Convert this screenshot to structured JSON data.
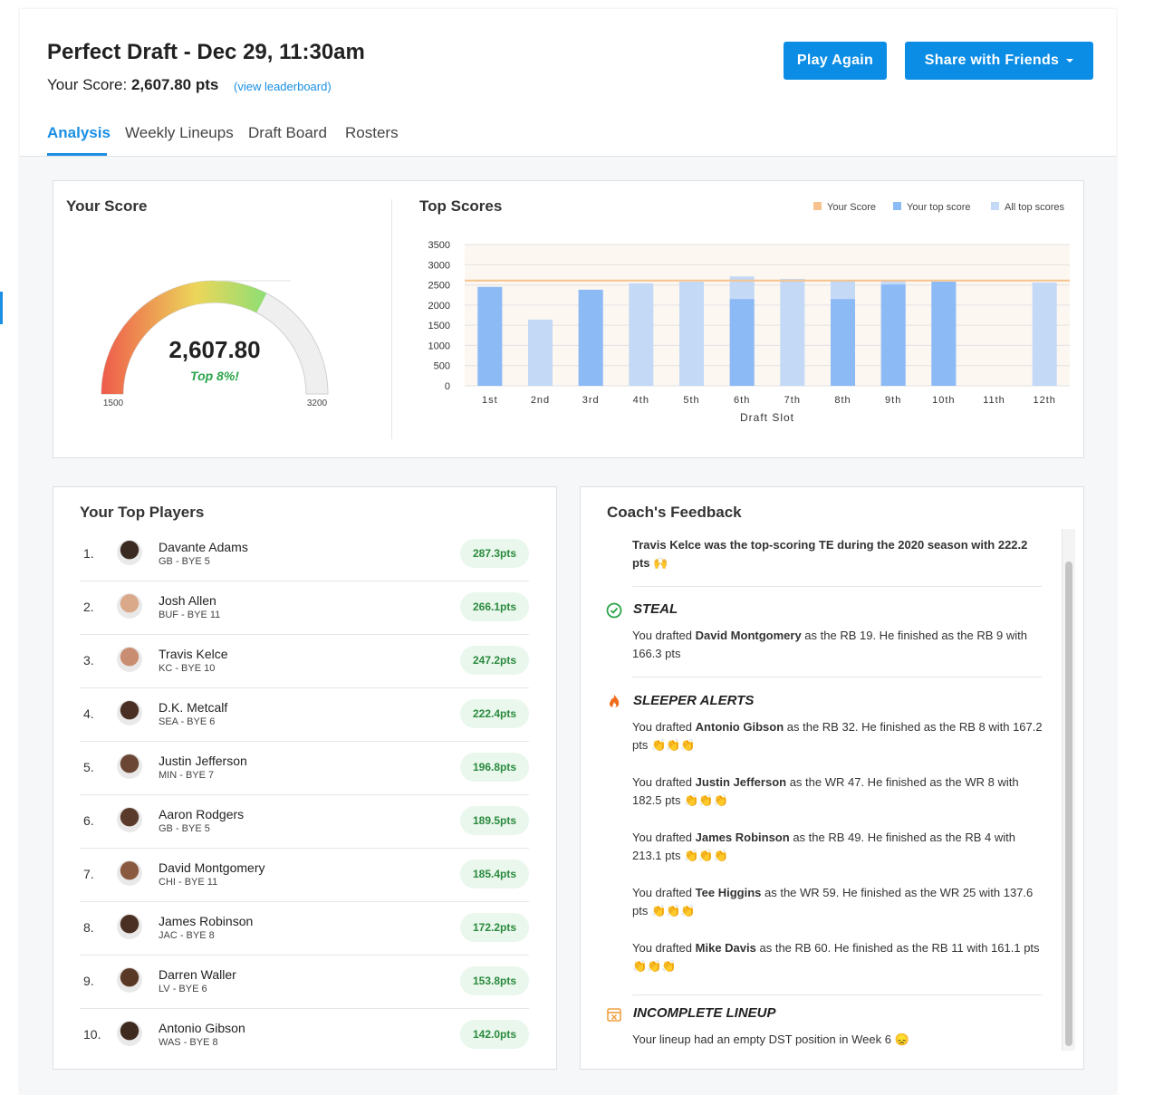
{
  "header": {
    "title": "Perfect Draft - Dec 29, 11:30am",
    "score_label": "Your Score:",
    "score": "2,607.80 pts",
    "leaderboard_link": "(view leaderboard)",
    "buttons": [
      "Play Again",
      "Share with Friends"
    ]
  },
  "tabs": [
    "Analysis",
    "Weekly Lineups",
    "Draft Board",
    "Rosters"
  ],
  "chart_data": [
    {
      "type": "gauge",
      "title": "Your Score",
      "value": 2607.8,
      "value_label": "2,607.80",
      "subtitle": "Top 8%!",
      "range": [
        1500,
        3200
      ]
    },
    {
      "type": "bar",
      "title": "Top Scores",
      "categories": [
        "1st",
        "2nd",
        "3rd",
        "4th",
        "5th",
        "6th",
        "7th",
        "8th",
        "9th",
        "10th",
        "11th",
        "12th"
      ],
      "x_label": "Draft Slot",
      "series": [
        {
          "name": "Your top score",
          "color": "#8cbaf5",
          "values": [
            2450,
            null,
            2380,
            null,
            null,
            2150,
            null,
            2150,
            2510,
            2580,
            null,
            null
          ]
        },
        {
          "name": "All top scores",
          "color": "#c3d9f6",
          "values": [
            2450,
            1640,
            2380,
            2540,
            2580,
            2710,
            2650,
            2600,
            2620,
            2580,
            null,
            2560
          ]
        }
      ],
      "reference_line": {
        "name": "Your Score",
        "color": "#f6c38e",
        "value": 2607.8
      },
      "ylim": [
        0,
        3500
      ],
      "yticks": [
        0,
        500,
        1000,
        1500,
        2000,
        2500,
        3000,
        3500
      ],
      "grid": true,
      "background": "#fcf7f1"
    }
  ],
  "top_players": {
    "title": "Your Top Players",
    "rows": [
      {
        "rank": "1.",
        "name": "Davante Adams",
        "team": "GB - BYE 5",
        "points": "287.3pts"
      },
      {
        "rank": "2.",
        "name": "Josh Allen",
        "team": "BUF - BYE 11",
        "points": "266.1pts"
      },
      {
        "rank": "3.",
        "name": "Travis Kelce",
        "team": "KC - BYE 10",
        "points": "247.2pts"
      },
      {
        "rank": "4.",
        "name": "D.K. Metcalf",
        "team": "SEA - BYE 6",
        "points": "222.4pts"
      },
      {
        "rank": "5.",
        "name": "Justin Jefferson",
        "team": "MIN - BYE 7",
        "points": "196.8pts"
      },
      {
        "rank": "6.",
        "name": "Aaron Rodgers",
        "team": "GB - BYE 5",
        "points": "189.5pts"
      },
      {
        "rank": "7.",
        "name": "David Montgomery",
        "team": "CHI - BYE 11",
        "points": "185.4pts"
      },
      {
        "rank": "8.",
        "name": "James Robinson",
        "team": "JAC - BYE 8",
        "points": "172.2pts"
      },
      {
        "rank": "9.",
        "name": "Darren Waller",
        "team": "LV - BYE 6",
        "points": "153.8pts"
      },
      {
        "rank": "10.",
        "name": "Antonio Gibson",
        "team": "WAS - BYE 8",
        "points": "142.0pts"
      }
    ]
  },
  "feedback": {
    "title": "Coach's Feedback",
    "intro": [
      "Travis Kelce",
      "was the top-scoring TE during the 2020 season with 222.2 pts 🙌"
    ],
    "sections": [
      {
        "title": "STEAL",
        "items": [
          [
            "You drafted",
            "David Montgomery",
            "as the RB 19. He finished as the RB 9 with 166.3 pts"
          ]
        ]
      },
      {
        "title": "SLEEPER ALERTS",
        "items": [
          [
            "You drafted",
            "Antonio Gibson",
            "as the RB 32. He finished as the RB 8 with 167.2 pts 👏👏👏"
          ],
          [
            "You drafted",
            "Justin Jefferson",
            "as the WR 47. He finished as the WR 8 with 182.5 pts 👏👏👏"
          ],
          [
            "You drafted",
            "James Robinson",
            "as the RB 49. He finished as the RB 4 with 213.1 pts 👏👏👏"
          ],
          [
            "You drafted",
            "Tee Higgins",
            "as the WR 59. He finished as the WR 25 with 137.6 pts 👏👏👏"
          ],
          [
            "You drafted",
            "Mike Davis",
            "as the RB 60. He finished as the RB 11 with 161.1 pts 👏👏👏"
          ]
        ]
      },
      {
        "title": "INCOMPLETE LINEUP",
        "items": [
          [
            "Your lineup had an empty DST position in Week 6 😞"
          ]
        ]
      }
    ]
  }
}
